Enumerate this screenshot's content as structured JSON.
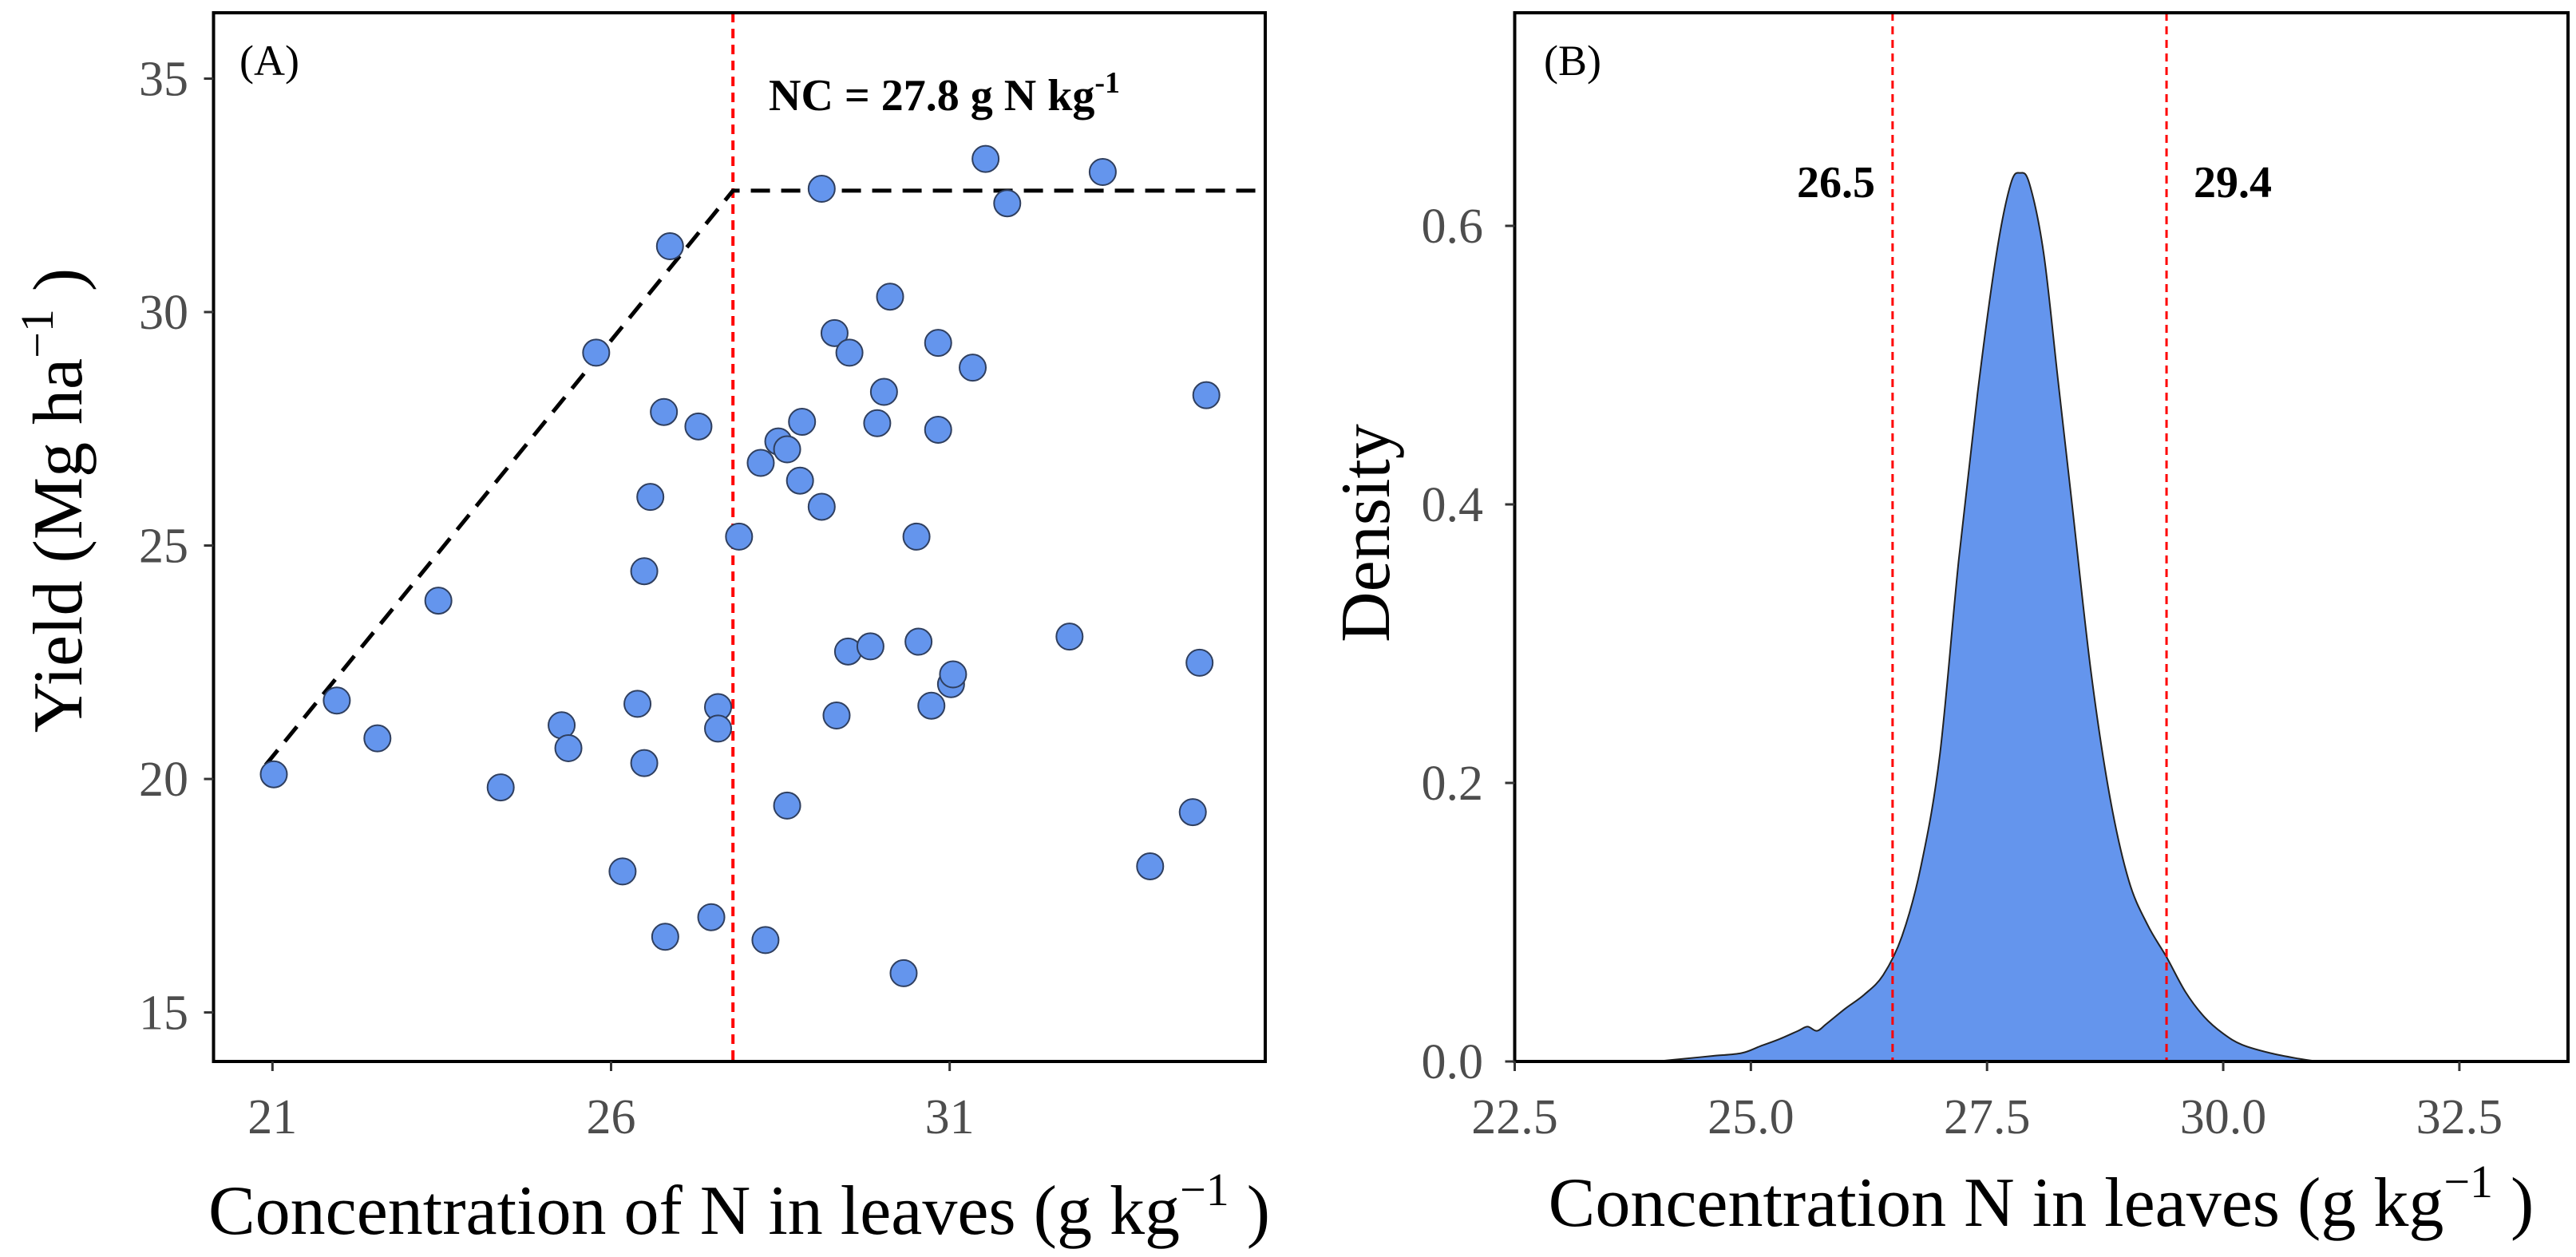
{
  "chart_data": [
    {
      "type": "scatter",
      "panel_label": "(A)",
      "xlabel": {
        "pre": "Concentration of N in leaves (g kg",
        "sup": "−1",
        "post": " )"
      },
      "ylabel": {
        "pre": "Yield (Mg ha",
        "sup": "−1",
        "post": " )"
      },
      "xlim": [
        20.13,
        35.66
      ],
      "ylim": [
        13.95,
        36.41
      ],
      "xticks": [
        "21",
        "26",
        "31"
      ],
      "yticks": [
        "15",
        "20",
        "25",
        "30",
        "35"
      ],
      "grid": false,
      "legend": "none",
      "points": {
        "x": [
          21.02,
          21.95,
          22.55,
          23.45,
          24.37,
          25.27,
          25.37,
          25.78,
          26.17,
          26.39,
          26.49,
          26.49,
          26.58,
          26.78,
          26.8,
          26.87,
          27.29,
          27.48,
          27.58,
          27.58,
          27.89,
          28.21,
          28.28,
          28.47,
          28.6,
          28.6,
          28.79,
          28.82,
          29.11,
          29.11,
          29.3,
          29.33,
          29.5,
          29.52,
          29.83,
          29.93,
          30.03,
          30.12,
          30.32,
          30.51,
          30.54,
          30.73,
          30.83,
          30.83,
          31.02,
          31.05,
          31.34,
          31.53,
          31.85,
          32.77,
          33.26,
          33.96,
          34.59,
          34.69,
          34.79
        ],
        "y": [
          20.1,
          21.68,
          20.87,
          23.82,
          19.82,
          21.15,
          20.66,
          29.13,
          18.02,
          21.61,
          24.45,
          20.34,
          26.04,
          27.86,
          16.62,
          31.41,
          27.55,
          17.04,
          21.54,
          21.08,
          25.19,
          26.77,
          16.55,
          27.23,
          27.06,
          19.43,
          26.39,
          27.65,
          32.64,
          25.83,
          29.55,
          21.36,
          22.73,
          29.13,
          22.84,
          27.62,
          28.29,
          30.33,
          15.84,
          25.19,
          22.94,
          21.57,
          29.34,
          27.48,
          22.03,
          22.24,
          28.81,
          33.28,
          32.33,
          23.05,
          33.0,
          18.13,
          19.29,
          22.49,
          28.22
        ]
      },
      "point_color": "#6495ED",
      "point_edge_color": "#2F3F5F",
      "threshold_line": {
        "x": [
          20.9,
          27.8,
          35.6
        ],
        "y": [
          20.3,
          32.6,
          32.6
        ],
        "style": "dashed",
        "color": "#000000"
      },
      "vline": {
        "x": 27.8,
        "style": "dashed",
        "color": "#FF0000"
      },
      "annotation": {
        "text": "NC = 27.8 g N kg",
        "sup": "-1"
      }
    },
    {
      "type": "area",
      "panel_label": "(B)",
      "xlabel": {
        "pre": "Concentration N in leaves (g kg",
        "sup": "−1",
        "post": " )"
      },
      "ylabel": "Density",
      "xlim": [
        22.5,
        33.65
      ],
      "ylim": [
        0,
        0.753
      ],
      "xticks": [
        "22.5",
        "25.0",
        "27.5",
        "30.0",
        "32.5"
      ],
      "yticks": [
        "0.0",
        "0.2",
        "0.4",
        "0.6"
      ],
      "grid": false,
      "legend": "none",
      "density": {
        "x": [
          24.0,
          24.3,
          24.6,
          24.9,
          25.1,
          25.3,
          25.5,
          25.6,
          25.7,
          25.8,
          26.0,
          26.2,
          26.4,
          26.6,
          26.8,
          27.0,
          27.2,
          27.4,
          27.6,
          27.75,
          27.85,
          27.95,
          28.1,
          28.25,
          28.4,
          28.6,
          28.8,
          29.0,
          29.2,
          29.4,
          29.6,
          29.8,
          30.0,
          30.2,
          30.5,
          30.8,
          31.0
        ],
        "y": [
          0.0,
          0.002,
          0.004,
          0.006,
          0.011,
          0.016,
          0.022,
          0.025,
          0.022,
          0.027,
          0.038,
          0.048,
          0.062,
          0.09,
          0.14,
          0.22,
          0.36,
          0.48,
          0.58,
          0.63,
          0.638,
          0.63,
          0.58,
          0.49,
          0.4,
          0.28,
          0.19,
          0.13,
          0.098,
          0.075,
          0.05,
          0.032,
          0.02,
          0.012,
          0.006,
          0.002,
          0.0
        ]
      },
      "fill_color": "#6495ED",
      "outline_color": "#222222",
      "vlines": [
        {
          "x": 26.5,
          "label": "26.5",
          "style": "dashed",
          "color": "#FF0000"
        },
        {
          "x": 29.4,
          "label": "29.4",
          "style": "dashed",
          "color": "#FF0000"
        }
      ]
    }
  ]
}
